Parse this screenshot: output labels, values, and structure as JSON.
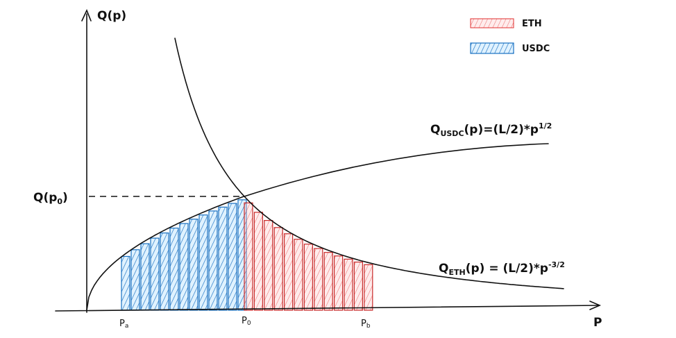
{
  "axes": {
    "y_label": "Q(p)",
    "x_label": "P"
  },
  "marker": {
    "main": "Q(p",
    "sub": "0",
    "tail": ")"
  },
  "x_ticks": [
    {
      "main": "P",
      "sub": "a"
    },
    {
      "main": "P",
      "sub": "0"
    },
    {
      "main": "P",
      "sub": "b"
    }
  ],
  "legend": [
    "ETH",
    "USDC"
  ],
  "formulas": {
    "usdc": {
      "q": "Q",
      "sub": "USDC",
      "mid": "(p)=(L/2)*p",
      "sup": "1/2"
    },
    "eth": {
      "q": "Q",
      "sub": "ETH",
      "mid": "(p) = (L/2)*p",
      "sup": "-3/2"
    }
  }
}
